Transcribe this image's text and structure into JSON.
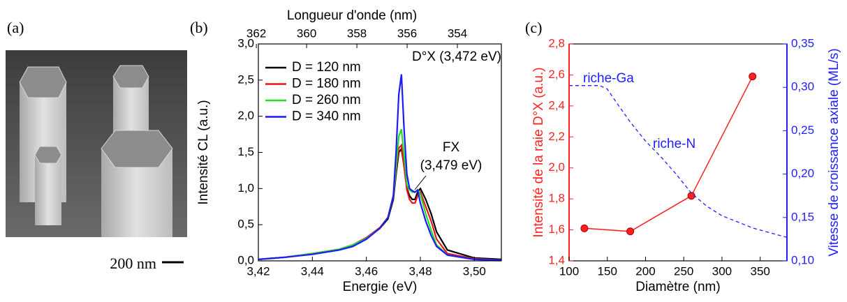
{
  "image_panel": {
    "label": "(a)",
    "scale_bar": "200 nm"
  },
  "chart_data": [
    {
      "type": "line",
      "label": "(b)",
      "xlabel": "Energie (eV)",
      "ylabel": "Intensité CL (a.u.)",
      "x2label": "Longueur d'onde (nm)",
      "xlim": [
        3.42,
        3.51
      ],
      "xticks": [
        {
          "value": 3.42,
          "label": "3,42"
        },
        {
          "value": 3.44,
          "label": "3,44"
        },
        {
          "value": 3.46,
          "label": "3,46"
        },
        {
          "value": 3.48,
          "label": "3,48"
        },
        {
          "value": 3.5,
          "label": "3,50"
        }
      ],
      "ylim": [
        0,
        3.0
      ],
      "yticks": [
        {
          "value": 0,
          "label": "0,0"
        },
        {
          "value": 0.5,
          "label": "0,5"
        },
        {
          "value": 1.0,
          "label": "1,0"
        },
        {
          "value": 1.5,
          "label": "1,5"
        },
        {
          "value": 2.0,
          "label": "2,0"
        },
        {
          "value": 2.5,
          "label": "2,5"
        },
        {
          "value": 3.0,
          "label": "3,0"
        }
      ],
      "x2lim": [
        361.92,
        352.25
      ],
      "x2ticks": [
        362,
        360,
        358,
        356,
        354
      ],
      "legend": "upper left",
      "x": [
        3.42,
        3.43,
        3.44,
        3.45,
        3.455,
        3.46,
        3.465,
        3.468,
        3.47,
        3.471,
        3.472,
        3.473,
        3.474,
        3.475,
        3.476,
        3.477,
        3.478,
        3.479,
        3.48,
        3.482,
        3.484,
        3.486,
        3.49,
        3.5,
        3.51
      ],
      "series": [
        {
          "name": "D = 120 nm",
          "color": "#000000",
          "values": [
            0.02,
            0.05,
            0.1,
            0.16,
            0.22,
            0.32,
            0.45,
            0.58,
            0.85,
            1.2,
            1.5,
            1.55,
            1.3,
            1.0,
            0.9,
            0.85,
            0.85,
            0.95,
            1.0,
            0.85,
            0.65,
            0.4,
            0.15,
            0.04,
            0.02
          ]
        },
        {
          "name": "D = 180 nm",
          "color": "#e8141a",
          "values": [
            0.02,
            0.05,
            0.1,
            0.16,
            0.22,
            0.32,
            0.46,
            0.6,
            0.88,
            1.25,
            1.56,
            1.6,
            1.3,
            0.98,
            0.85,
            0.8,
            0.8,
            0.9,
            0.95,
            0.75,
            0.55,
            0.3,
            0.1,
            0.03,
            0.01
          ]
        },
        {
          "name": "D = 260 nm",
          "color": "#22dd22",
          "values": [
            0.02,
            0.05,
            0.1,
            0.16,
            0.22,
            0.31,
            0.45,
            0.6,
            0.9,
            1.3,
            1.72,
            1.82,
            1.45,
            1.05,
            0.98,
            0.95,
            0.95,
            0.98,
            0.92,
            0.65,
            0.42,
            0.22,
            0.08,
            0.02,
            0.01
          ]
        },
        {
          "name": "D = 340 nm",
          "color": "#1a1aff",
          "values": [
            0.02,
            0.05,
            0.09,
            0.15,
            0.2,
            0.3,
            0.45,
            0.6,
            0.9,
            1.5,
            2.3,
            2.58,
            1.8,
            1.2,
            1.0,
            0.97,
            0.95,
            0.98,
            0.8,
            0.55,
            0.35,
            0.2,
            0.08,
            0.02,
            0.01
          ]
        }
      ],
      "annotations": [
        "D°X (3,472 eV)",
        "FX",
        "(3,479 eV)"
      ]
    },
    {
      "type": "line",
      "label": "(c)",
      "xlabel": "Diamètre (nm)",
      "ylabel": "Intensité de la raie D°X (a.u.)",
      "y2label": "Vitesse de croissance axiale (ML/s)",
      "y_color": "#ff2020",
      "y2_color": "#2020ff",
      "xlim": [
        100,
        385
      ],
      "xticks": [
        100,
        150,
        200,
        250,
        300,
        350
      ],
      "ylim": [
        1.4,
        2.8
      ],
      "yticks": [
        {
          "value": 1.4,
          "label": "1,4"
        },
        {
          "value": 1.6,
          "label": "1,6"
        },
        {
          "value": 1.8,
          "label": "1,8"
        },
        {
          "value": 2.0,
          "label": "2,0"
        },
        {
          "value": 2.2,
          "label": "2,2"
        },
        {
          "value": 2.4,
          "label": "2,4"
        },
        {
          "value": 2.6,
          "label": "2,6"
        },
        {
          "value": 2.8,
          "label": "2,8"
        }
      ],
      "y2lim": [
        0.1,
        0.35
      ],
      "y2ticks": [
        {
          "value": 0.1,
          "label": "0,10"
        },
        {
          "value": 0.15,
          "label": "0,15"
        },
        {
          "value": 0.2,
          "label": "0,20"
        },
        {
          "value": 0.25,
          "label": "0,25"
        },
        {
          "value": 0.3,
          "label": "0,30"
        },
        {
          "value": 0.35,
          "label": "0,35"
        }
      ],
      "series": [
        {
          "color": "#ff2020",
          "markers": true,
          "x": [
            120,
            180,
            260,
            340
          ],
          "values": [
            1.61,
            1.59,
            1.82,
            2.59
          ]
        },
        {
          "color": "#2020ff",
          "dashed": true,
          "axis": "y2",
          "x": [
            100,
            120,
            140,
            150,
            160,
            180,
            200,
            220,
            240,
            260,
            280,
            300,
            320,
            340,
            360,
            385
          ],
          "values": [
            0.302,
            0.302,
            0.302,
            0.298,
            0.285,
            0.26,
            0.238,
            0.22,
            0.2,
            0.178,
            0.163,
            0.152,
            0.145,
            0.138,
            0.133,
            0.127
          ]
        }
      ],
      "annotations": [
        "riche-Ga",
        "riche-N"
      ]
    }
  ]
}
